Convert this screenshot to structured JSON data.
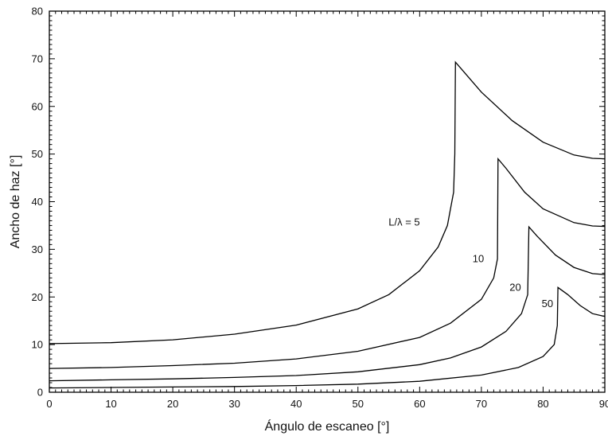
{
  "chart_data": {
    "type": "line",
    "xlabel": "Ángulo de escaneo [°]",
    "ylabel": "Ancho de haz [°]",
    "xlim": [
      0,
      90
    ],
    "ylim": [
      0,
      80
    ],
    "xticks": [
      0,
      10,
      20,
      30,
      40,
      50,
      60,
      70,
      80,
      90
    ],
    "yticks": [
      0,
      10,
      20,
      30,
      40,
      50,
      60,
      70,
      80
    ],
    "x_tick_labels": [
      "0",
      "10",
      "20",
      "30",
      "40",
      "50",
      "60",
      "70",
      "80",
      "90"
    ],
    "y_tick_labels": [
      "0",
      "10",
      "20",
      "30",
      "40",
      "50",
      "60",
      "70",
      "80"
    ],
    "grid": false,
    "series": [
      {
        "name": "L/λ = 5",
        "points": [
          [
            0,
            10.2
          ],
          [
            10,
            10.4
          ],
          [
            20,
            11.0
          ],
          [
            30,
            12.2
          ],
          [
            40,
            14.1
          ],
          [
            50,
            17.5
          ],
          [
            55,
            20.5
          ],
          [
            60,
            25.5
          ],
          [
            63,
            30.5
          ],
          [
            64.5,
            35
          ],
          [
            65.5,
            42
          ],
          [
            65.7,
            50
          ],
          [
            65.8,
            69.3
          ],
          [
            67,
            67.5
          ],
          [
            70,
            63.0
          ],
          [
            75,
            57.0
          ],
          [
            80,
            52.5
          ],
          [
            85,
            49.8
          ],
          [
            88,
            49.1
          ],
          [
            90,
            49.0
          ]
        ]
      },
      {
        "name": "10",
        "points": [
          [
            0,
            5.0
          ],
          [
            10,
            5.2
          ],
          [
            20,
            5.6
          ],
          [
            30,
            6.1
          ],
          [
            40,
            7.0
          ],
          [
            50,
            8.6
          ],
          [
            60,
            11.5
          ],
          [
            65,
            14.5
          ],
          [
            70,
            19.5
          ],
          [
            72,
            24.0
          ],
          [
            72.6,
            28
          ],
          [
            72.7,
            49.0
          ],
          [
            74,
            47.0
          ],
          [
            77,
            42.0
          ],
          [
            80,
            38.5
          ],
          [
            85,
            35.6
          ],
          [
            88,
            34.9
          ],
          [
            90,
            34.8
          ]
        ]
      },
      {
        "name": "20",
        "points": [
          [
            0,
            2.4
          ],
          [
            10,
            2.6
          ],
          [
            20,
            2.8
          ],
          [
            30,
            3.1
          ],
          [
            40,
            3.5
          ],
          [
            50,
            4.3
          ],
          [
            60,
            5.8
          ],
          [
            65,
            7.2
          ],
          [
            70,
            9.5
          ],
          [
            74,
            12.8
          ],
          [
            76.5,
            16.5
          ],
          [
            77.5,
            20.5
          ],
          [
            77.7,
            34.7
          ],
          [
            79,
            32.8
          ],
          [
            82,
            28.8
          ],
          [
            85,
            26.2
          ],
          [
            88,
            24.9
          ],
          [
            90,
            24.7
          ]
        ]
      },
      {
        "name": "50",
        "points": [
          [
            0,
            0.9
          ],
          [
            10,
            1.0
          ],
          [
            20,
            1.1
          ],
          [
            30,
            1.2
          ],
          [
            40,
            1.4
          ],
          [
            50,
            1.7
          ],
          [
            60,
            2.3
          ],
          [
            70,
            3.6
          ],
          [
            76,
            5.2
          ],
          [
            80,
            7.5
          ],
          [
            81.8,
            10.0
          ],
          [
            82.3,
            14.0
          ],
          [
            82.4,
            22.0
          ],
          [
            84,
            20.5
          ],
          [
            86,
            18.2
          ],
          [
            88,
            16.5
          ],
          [
            90,
            15.9
          ]
        ]
      }
    ],
    "annotations": [
      {
        "text": "L/λ = 5",
        "x": 57.5,
        "y": 35.0
      },
      {
        "text": "10",
        "x": 69.5,
        "y": 27.3
      },
      {
        "text": "20",
        "x": 75.5,
        "y": 21.3
      },
      {
        "text": "50",
        "x": 80.7,
        "y": 17.9
      }
    ]
  }
}
